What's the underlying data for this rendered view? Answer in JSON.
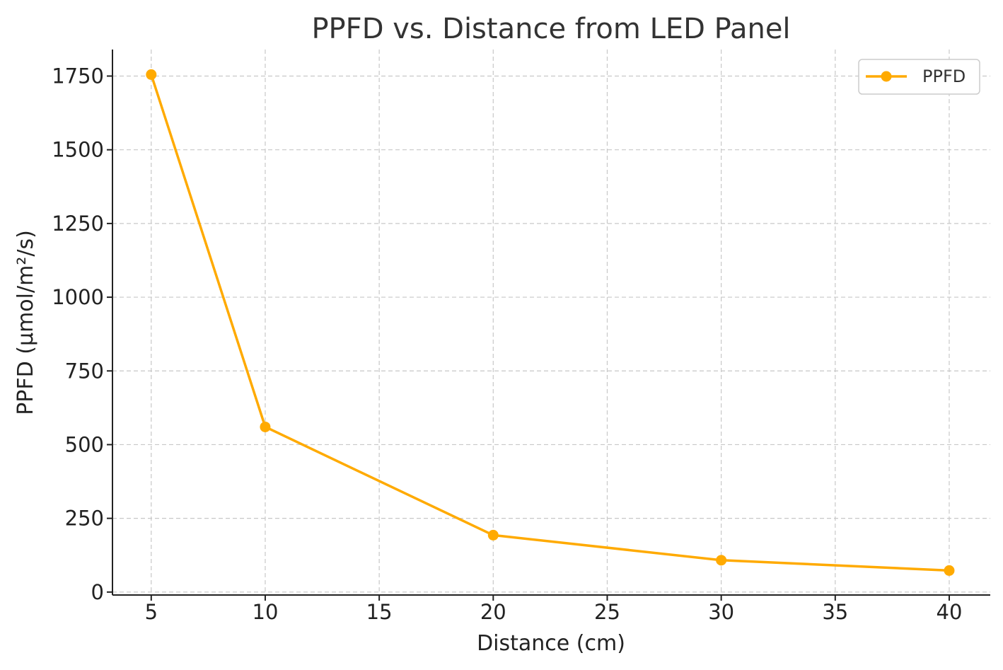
{
  "chart_data": {
    "type": "line",
    "title": "PPFD vs. Distance from LED Panel",
    "xlabel": "Distance (cm)",
    "ylabel": "PPFD (µmol/m²/s)",
    "xlim": [
      3.3,
      41.8
    ],
    "ylim": [
      -10,
      1840
    ],
    "xticks": [
      5,
      10,
      15,
      20,
      25,
      30,
      35,
      40
    ],
    "yticks": [
      0,
      250,
      500,
      750,
      1000,
      1250,
      1500,
      1750
    ],
    "grid": true,
    "legend_position": "top-right",
    "series": [
      {
        "name": "PPFD",
        "color": "#FFAA00",
        "marker": "circle",
        "x": [
          5,
          10,
          20,
          30,
          40
        ],
        "y": [
          1755,
          560,
          193,
          108,
          73
        ]
      }
    ]
  }
}
